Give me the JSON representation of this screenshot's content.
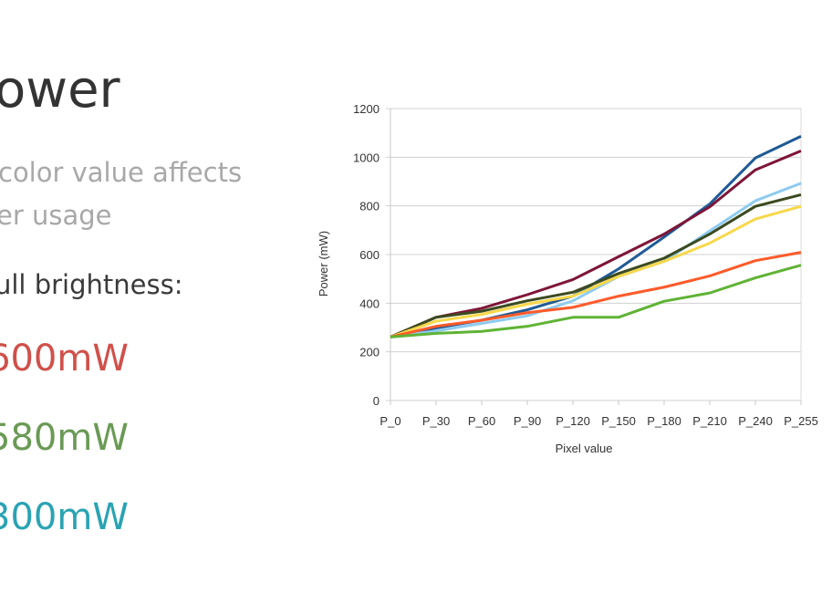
{
  "slide": {
    "title": "ower",
    "line1": "color value affects",
    "line2": "er usage",
    "line3": "ull brightness:",
    "values": [
      "600mW",
      "580mW",
      "300mW"
    ],
    "value_colors": [
      "#d0504a",
      "#6a9a55",
      "#2aa3b3"
    ]
  },
  "chart_data": {
    "type": "line",
    "title": "",
    "xlabel": "Pixel value",
    "ylabel": "Power (mW)",
    "ylim": [
      0,
      1200
    ],
    "yticks": [
      0,
      200,
      400,
      600,
      800,
      1000,
      1200
    ],
    "grid": true,
    "legend": "none",
    "categories": [
      "P_0",
      "P_30",
      "P_60",
      "P_90",
      "P_120",
      "P_150",
      "P_180",
      "P_210",
      "P_240",
      "P_255"
    ],
    "series": [
      {
        "color": "#1f5a96",
        "values": [
          261,
          298,
          330,
          373,
          429,
          541,
          672,
          808,
          997,
          1086
        ]
      },
      {
        "color": "#7e1537",
        "values": [
          261,
          342,
          379,
          435,
          497,
          591,
          684,
          796,
          948,
          1026
        ]
      },
      {
        "color": "#8ecbf0",
        "values": [
          261,
          286,
          317,
          348,
          410,
          510,
          572,
          697,
          821,
          893
        ]
      },
      {
        "color": "#3b4a1f",
        "values": [
          261,
          342,
          367,
          410,
          445,
          522,
          585,
          684,
          798,
          846
        ]
      },
      {
        "color": "#f7d84a",
        "values": [
          261,
          326,
          354,
          396,
          429,
          510,
          572,
          647,
          746,
          798
        ]
      },
      {
        "color": "#ff5a2a",
        "values": [
          261,
          305,
          330,
          361,
          383,
          429,
          466,
          512,
          575,
          609
        ]
      },
      {
        "color": "#5fb335",
        "values": [
          261,
          276,
          284,
          305,
          342,
          342,
          408,
          442,
          504,
          556
        ]
      }
    ]
  }
}
